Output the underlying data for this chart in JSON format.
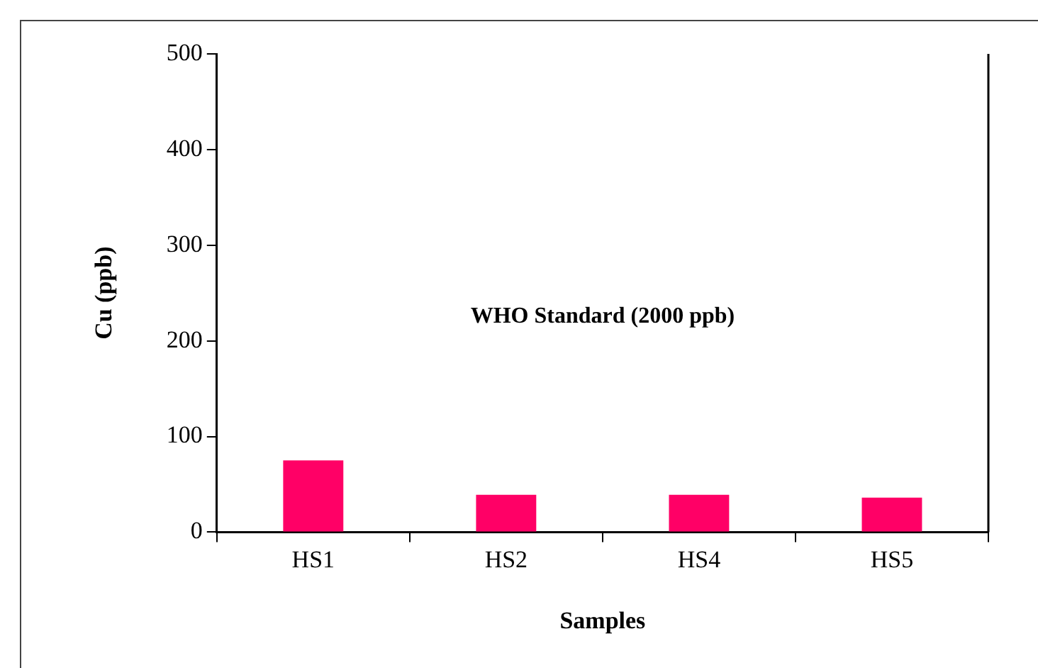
{
  "chart_data": {
    "type": "bar",
    "xlabel": "Samples",
    "ylabel": "Cu (ppb)",
    "categories": [
      "HS1",
      "HS2",
      "HS4",
      "HS5"
    ],
    "values": [
      75,
      39,
      39,
      36
    ],
    "color": "#ff0066",
    "ylim": [
      0,
      500
    ],
    "yticks": [
      0,
      100,
      200,
      300,
      400,
      500
    ],
    "grid": false,
    "legend": false,
    "annotations": [
      "WHO Standard (2000 ppb)"
    ]
  }
}
